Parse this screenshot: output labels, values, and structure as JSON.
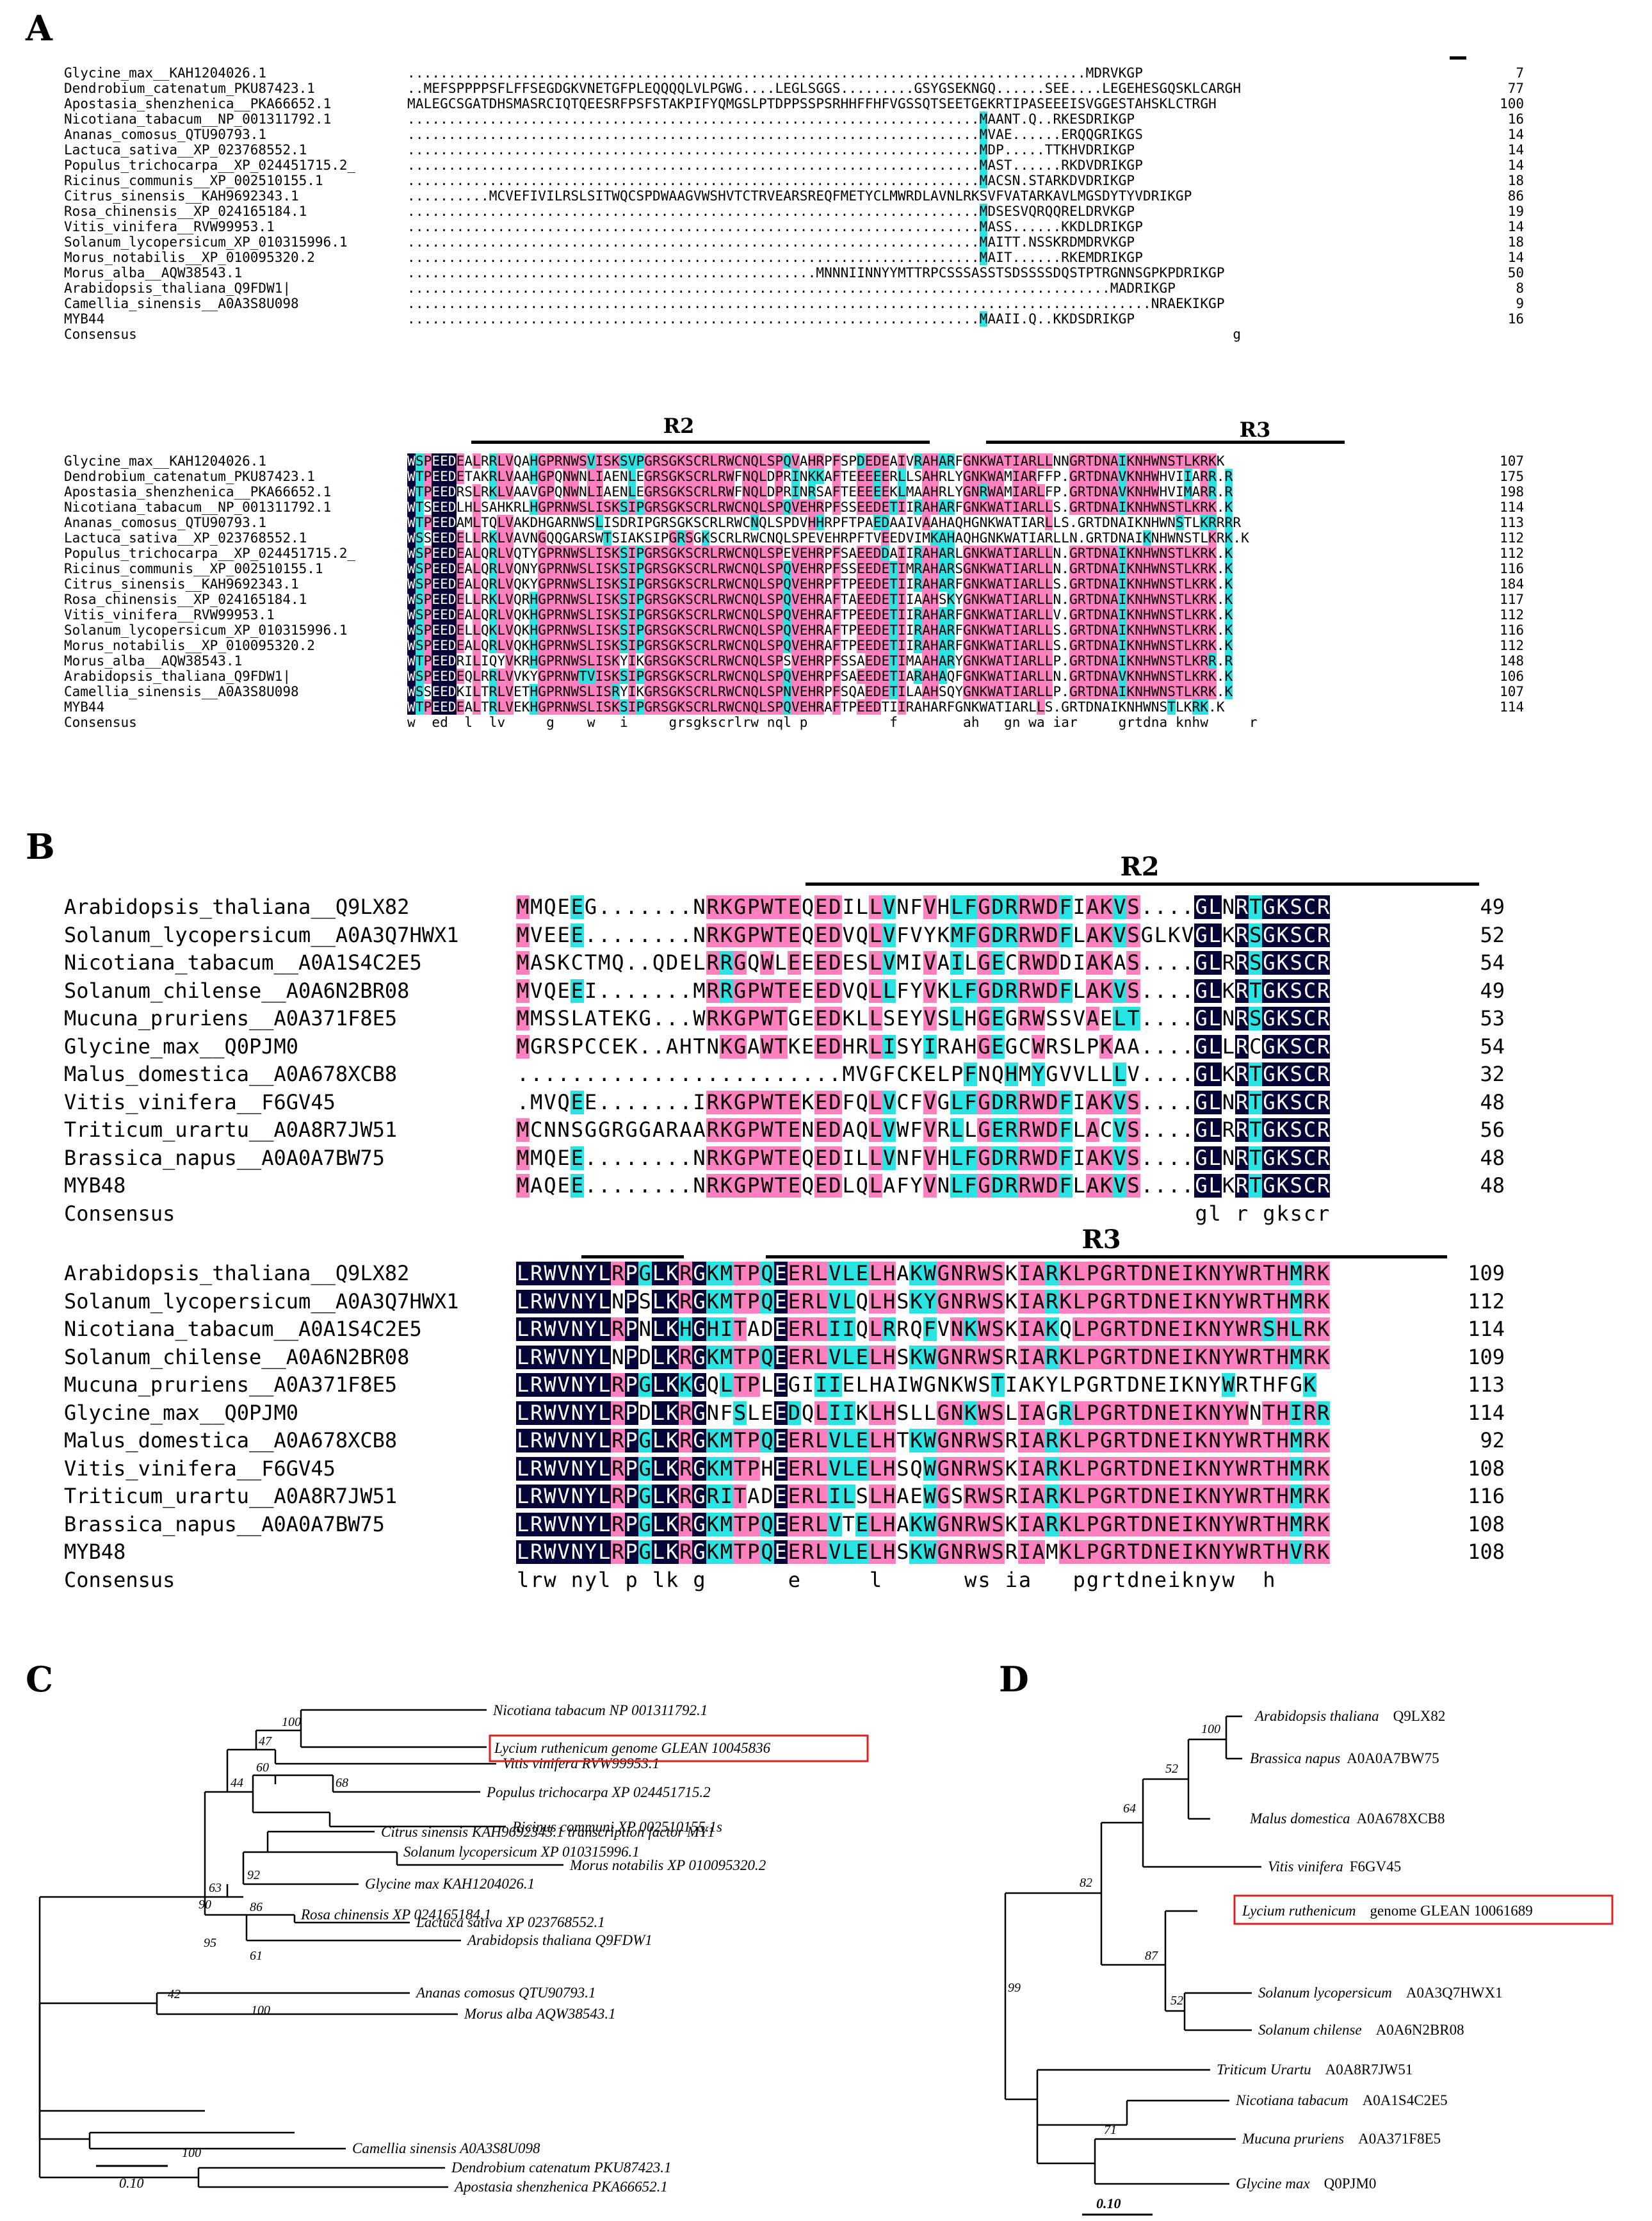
{
  "panels": {
    "A": "A",
    "B": "B",
    "C": "C",
    "D": "D"
  },
  "colors": {
    "identical": "#050537",
    "similar": "#ff7fbf",
    "conserved": "#2ae4e4"
  },
  "panelA": {
    "motifs": [
      "R2",
      "R3"
    ],
    "block1": {
      "names": [
        "Glycine_max__KAH1204026.1",
        "Dendrobium_catenatum_PKU87423.1",
        "Apostasia_shenzhenica__PKA66652.1",
        "Nicotiana_tabacum__NP_001311792.1",
        "Ananas_comosus_QTU90793.1",
        "Lactuca_sativa__XP_023768552.1",
        "Populus_trichocarpa__XP_024451715.2_",
        "Ricinus_communis__XP_002510155.1",
        "Citrus_sinensis__KAH9692343.1",
        "Rosa_chinensis__XP_024165184.1",
        "Vitis_vinifera__RVW99953.1",
        "Solanum_lycopersicum_XP_010315996.1",
        "Morus_notabilis__XP_010095320.2",
        "Morus_alba__AQW38543.1",
        "Arabidopsis_thaliana_Q9FDW1|",
        "Camellia_sinensis__A0A3S8U098",
        "MYB44",
        "Consensus"
      ],
      "seqs": [
        "...................................................................................MDRVKGP",
        "..MEFSPPPPSFLFFSEGDGKVNETGFPLEQQQQLVLPGWG....LEGLSGGS.........GSYGSEKNGQ......SEE....LEGEHESGQSKLCARGH",
        "MALEGCSGATDHSMASRCIQTQEESRFPSFSTAKPIFYQMGSLPTDPPSSPSRHHFFHFVGSSQTSEETGEKRTIPASEEEISVGGESTAHSKLCTRGH",
        "......................................................................MAANT.Q..RKESDRIKGP",
        "......................................................................MVAE......ERQQGRIKGS",
        "......................................................................MDP.....TTKHVDRIKGP",
        "......................................................................MAST......RKDVDRIKGP",
        "......................................................................MACSN.STARKDVDRIKGP",
        "..........MCVEFIVILRSLSITWQCSPDWAAGVWSHVTCTRVEARSREQFMETYCLMWRDLAVNLRKSVFVATARKAVLMGSDYTYVDRIKGP",
        "......................................................................MDSESVQRQQRELDRVKGP",
        "......................................................................MASS......KKDLDRIKGP",
        "......................................................................MAITT.NSSKRDMDRVKGP",
        "......................................................................MAIT......RKEMDRIKGP",
        "..................................................MNNNIINNYYMTTRPCSSSASSTSDSSSSDQSTPTRGNNSGPKPDRIKGP",
        "......................................................................................MADRIKGP",
        "...........................................................................................NRAEKIKGP",
        "......................................................................MAAII.Q..KKDSDRIKGP",
        "                                                                                                     g"
      ],
      "lens": [
        "7",
        "77",
        "100",
        "16",
        "14",
        "14",
        "14",
        "18",
        "86",
        "19",
        "14",
        "18",
        "14",
        "50",
        "8",
        "9",
        "16",
        ""
      ]
    },
    "block2": {
      "names": [
        "Glycine_max__KAH1204026.1",
        "Dendrobium_catenatum_PKU87423.1",
        "Apostasia_shenzhenica__PKA66652.1",
        "Nicotiana_tabacum__NP_001311792.1",
        "Ananas_comosus_QTU90793.1",
        "Lactuca_sativa__XP_023768552.1",
        "Populus_trichocarpa__XP_024451715.2_",
        "Ricinus_communis__XP_002510155.1",
        "Citrus_sinensis__KAH9692343.1",
        "Rosa_chinensis__XP_024165184.1",
        "Vitis_vinifera__RVW99953.1",
        "Solanum_lycopersicum_XP_010315996.1",
        "Morus_notabilis__XP_010095320.2",
        "Morus_alba__AQW38543.1",
        "Arabidopsis_thaliana_Q9FDW1|",
        "Camellia_sinensis__A0A3S8U098",
        "MYB44",
        "Consensus"
      ],
      "seqs": [
        "WSPEEDEALRRLVQAHGPRNWSVISKSVPGRSGKSCRLRWCNQLSPQVAHRPFSPDEDEAIVRAHARFGNKWATIARLLNNGRTDNAIKNHWNSTLKRKK",
        "WTPEEDETAKRLVAAHGPQNWNLIAENLEGRSGKSCRLRWFNQLDPRINKKAFTEEEEERLLSAHRLYGNKWAMIARFFP.GRTDNAVKNHWHVIIARR.R",
        "WTPEEDRSLRKLVAAVGPQNWNLIAENLEGRSGKSCRLRWFNQLDPRINRSAFTEEEEEKLMAAHRLYGNRWAMIARLFP.GRTDNAVKNHWHVIMARR.R",
        "WTSEEDLHLSAHKRLHGPRNWSLISKSIPGRSGKSCRLRWCNQLSPQVEHRPFSSEEDETIIRAHARFGNKWATIARLLS.GRTDNAIKNHWNSTLKRK.K",
        "WTPEEDAMLTQLVAKDHGARNWSLISDRIPGRSGKSCRLRWCNQLSPDVHHRPFTPAEDAAIVAAHAQHGNKWATIARLLS.GRTDNAIKNHWNSTLKRRRR",
        "WSSEEDELLRKLVAVNGQQGARSWTSIAKSIPGRSGKSCRLRWCNQLSPEVEHRPFTVEEDVIMKAHAQHGNKWATIARLLN.GRTDNAIKNHWNSTLKRK.K",
        "WSPEEDEALQRLVQTYGPRNWSLISKSIPGRSGKSCRLRWCNQLSPEVEHRPFSAEEDDAIIRAHARLGNKWATIARLLN.GRTDNAIKNHWNSTLKRK.K",
        "WSPEEDEALQRLVQNYGPRNWSLISKSIPGRSGKSCRLRWCNQLSPQVEHRPFSSEEDETIMRAHARSGNKWATIARLLN.GRTDNAIKNHWNSTLKRK.K",
        "WSPEEDEALQRLVQKYGPRNWSLISKSIPGRSGKSCRLRWCNQLSPQVEHRPFTPEEDETIIRAHARFGNKWATIARLLS.GRTDNAIKNHWNSTLKRK.K",
        "WSPEEDELLRKLVQRHGPRNWSLISKSIPGRSGKSCRLRWCNQLSPQVEHRAFTAEEDETIIAAHSKYGNKWATIARLLN.GRTDNAIKNHWNSTLKRK.K",
        "WSPEEDEALQRLVQKHGPRNWSLISKSIPGRSGKSCRLRWCNQLSPQVEHRAFTPEEDETIIRAHARFGNKWATIARLLV.GRTDNAIKNHWNSTLKRK.K",
        "WSPEEDELLQKLVQKHGPRNWSLISKSIPGRSGKSCRLRWCNQLSPQVEHRAFTPEEDETIIRAHARFGNKWATIARLLS.GRTDNAIKNHWNSTLKRK.K",
        "WSPEEDEALQRLVQKHGPRNWSLISKSIPGRSGKSCRLRWCNQLSPQVEHRAFTPEEDETIIRAHARFGNKWATIARLLS.GRTDNAIKNHWNSTLKRK.K",
        "WTPEEDRILIQYVKRHGPRNWSLISKYIKGRSGKSCRLRWCNQLSPSVEHRPFSSAEDETIMAAHARYGNKWATIARLLP.GRTDNAIKNHWNSTLKRR.R",
        "WSPEEDEQLRRLVVKYGPRNWTVISKSIPGRSGKSCRLRWCNQLSPQVEHRPFSAEEDETIARAHAQFGNKWATIARLLN.GRTDNAVKNHWNSTLKRK.K",
        "WSSEEDKILTRLVETHGPRNWSLISRYIKGRSGKSCRLRWCNQLSPNVEHRPFSQAEDETILAAHSQYGNKWATIARLLP.GRTDNAIKNHWNSTLKRK.K",
        "WTPEEDEALTRLVEKHGPRNWSLISKSIPGRSGKSCRLRWCNQLSPQVEHRAFTPEEDTIIRAHARFGNKWATIARLLS.GRTDNAIKNHWNSTLKRK.K",
        "w  ed  l  lv     g    w   i     grsgkscrlrw nql p          f        ah   gn wa iar     grtdna knhw     r"
      ],
      "lens": [
        "107",
        "175",
        "198",
        "114",
        "113",
        "112",
        "112",
        "116",
        "184",
        "117",
        "112",
        "116",
        "112",
        "148",
        "106",
        "107",
        "114",
        ""
      ]
    }
  },
  "panelB": {
    "motifs": [
      "R2",
      "R3"
    ],
    "block1": {
      "names": [
        "Arabidopsis_thaliana__Q9LX82",
        "Solanum_lycopersicum__A0A3Q7HWX1",
        "Nicotiana_tabacum__A0A1S4C2E5",
        "Solanum_chilense__A0A6N2BR08",
        "Mucuna_pruriens__A0A371F8E5",
        "Glycine_max__Q0PJM0",
        "Malus_domestica__A0A678XCB8",
        "Vitis_vinifera__F6GV45",
        "Triticum_urartu__A0A8R7JW51",
        "Brassica_napus__A0A0A7BW75",
        "MYB48",
        "Consensus"
      ],
      "seqs": [
        "MMQEEG.......NRKGPWTEQEDILLVNFVHLFGDRRWDFIAKVS....GLNRTGKSCR",
        "MVEEE........NRKGPWTEQEDVQLVFVYKMFGDRRWDFLAKVSGLKVGLKRSGKSCR",
        "MASKCTMQ..QDELRRGQWLEEEDESLVMIVAILGECRWDDIAKAS....GLRRSGKSCR",
        "MVQEEI.......MRRGPWTEEEDVQLLFYVKLFGDRRWDFLAKVS....GLKRTGKSCR",
        "MMSSLATEKG...WRKGPWTGEEDKLLSEYVSLHGEGRWSSVAELT....GLNRSGKSCR",
        "MGRSPCCEK..AHTNKGAWTKEEDHRLISYIRAHGEGCWRSLPKAA....GLLRCGKSCR",
        "........................MVGFCKELPFNQHMYGVVLLLV....GLKRTGKSCR",
        ".MVQEE.......IRKGPWTEKEDFQLVCFVGLFGDRRWDFIAKVS....GLNRTGKSCR",
        "MCNNSGGRGGARAARKGPWTENEDAQLVWFVRLLGERRWDFLACVS....GLRRTGKSCR",
        "MMQEE........NRKGPWTEQEDILLVNFVHLFGDRRWDFIAKVS....GLNRTGKSCR",
        "MAQEE........NRKGPWTEQEDLQLAFYVNLFGDRRWDFLAKVS....GLKRTGKSCR",
        "                                                  gl r gkscr"
      ],
      "lens": [
        "49",
        "52",
        "54",
        "49",
        "53",
        "54",
        "32",
        "48",
        "56",
        "48",
        "48",
        ""
      ]
    },
    "block2": {
      "names": [
        "Arabidopsis_thaliana__Q9LX82",
        "Solanum_lycopersicum__A0A3Q7HWX1",
        "Nicotiana_tabacum__A0A1S4C2E5",
        "Solanum_chilense__A0A6N2BR08",
        "Mucuna_pruriens__A0A371F8E5",
        "Glycine_max__Q0PJM0",
        "Malus_domestica__A0A678XCB8",
        "Vitis_vinifera__F6GV45",
        "Triticum_urartu__A0A8R7JW51",
        "Brassica_napus__A0A0A7BW75",
        "MYB48",
        "Consensus"
      ],
      "seqs": [
        "LRWVNYLRPGLKRGKMTPQEERLVLELHAKWGNRWSKIARKLPGRTDNEIKNYWRTHMRK",
        "LRWVNYLNPSLKRGKMTPQEERLVLQLHSKYGNRWSKIARKLPGRTDNEIKNYWRTHMRK",
        "LRWVNYLRPNLKHGHITADEERLIIQLRRQFVNKWSKIAKQLPGRTDNEIKNYWRSHLRK",
        "LRWVNYLNPDLKRGKMTPQEERLVLELHSKWGNRWSRIARKLPGRTDNEIKNYWRTHMRK",
        "LRWVNYLRPGLKKGQLTPLEGIIIELHAIWGNKWSTIAKYLPGRTDNEIKNYWRTHFGK",
        "LRWVNYLRPDLKRGNFSLEEDQLIIKLHSLLGNKWSLIAGRLPGRTDNEIKNYWNTHIRR",
        "LRWVNYLRPGLKRGKMTPQEERLVLELHTKWGNRWSRIARKLPGRTDNEIKNYWRTHMRK",
        "LRWVNYLRPGLKRGKMTPHEERLVLELHSQWGNRWSKIARKLPGRTDNEIKNYWRTHMRK",
        "LRWVNYLRPGLKRGRITADEERLILSLHAEWGSRWSRIARKLPGRTDNEIKNYWRTHMRK",
        "LRWVNYLRPGLKRGKMTPQEERLVTELHAKWGNRWSKIARKLPGRTDNEIKNYWRTHMRK",
        "LRWVNYLRPGLKRGKMTPQEERLVLELHSKWGNRWSRIAMKLPGRTDNEIKNYWRTHVRK",
        "lrw nyl p lk g      e     l      ws ia   pgrtdneiknyw  h   "
      ],
      "lens": [
        "109",
        "112",
        "114",
        "109",
        "113",
        "114",
        "92",
        "108",
        "116",
        "108",
        "108",
        ""
      ]
    }
  },
  "panelC": {
    "taxa": [
      "Nicotiana tabacum NP 001311792.1",
      "Lycium ruthenicum genome GLEAN 10045836",
      "Vitis vinifera    RVW99953.1",
      "Populus trichocarpa XP 024451715.2",
      "Ricinus communi    XP 002510155.1s",
      "Citrus sinensis KAH9692343.1 transcription factor MY1",
      "Solanum lycopersicum XP 010315996.1",
      "Morus notabilis XP 010095320.2",
      "Glycine max    KAH1204026.1",
      "Arabidopsis thaliana    Q9FDW1",
      "Lactuca sativa XP 023768552.1",
      "Rosa chinensis XP 024165184.1",
      "Ananas comosus QTU90793.1",
      "Morus alba AQW38543.1",
      "Camellia sinensis A0A3S8U098",
      "Dendrobium catenatum PKU87423.1",
      "Apostasia shenzhenica PKA66652.1"
    ],
    "bootstrap": [
      "100",
      "47",
      "44",
      "60",
      "68",
      "63",
      "92",
      "90",
      "86",
      "95",
      "61",
      "42",
      "100",
      "100"
    ],
    "scale": "0.10"
  },
  "panelD": {
    "taxa": [
      {
        "sp": "Arabidopsis thaliana",
        "id": "Q9LX82"
      },
      {
        "sp": "Brassica napus",
        "id": "A0A0A7BW75"
      },
      {
        "sp": "Malus domestica",
        "id": "A0A678XCB8"
      },
      {
        "sp": "Vitis vinifera",
        "id": "F6GV45"
      },
      {
        "sp": "Lycium ruthenicum",
        "id": "genome GLEAN 10061689"
      },
      {
        "sp": "Solanum lycopersicum",
        "id": "A0A3Q7HWX1"
      },
      {
        "sp": "Solanum chilense",
        "id": "A0A6N2BR08"
      },
      {
        "sp": "Triticum Urartu",
        "id": "A0A8R7JW51"
      },
      {
        "sp": "Nicotiana tabacum",
        "id": "A0A1S4C2E5"
      },
      {
        "sp": "Mucuna pruriens",
        "id": "A0A371F8E5"
      },
      {
        "sp": "Glycine max",
        "id": "Q0PJM0"
      }
    ],
    "bootstrap": [
      "100",
      "52",
      "64",
      "82",
      "87",
      "52",
      "99",
      "71"
    ],
    "scale": "0.10"
  }
}
